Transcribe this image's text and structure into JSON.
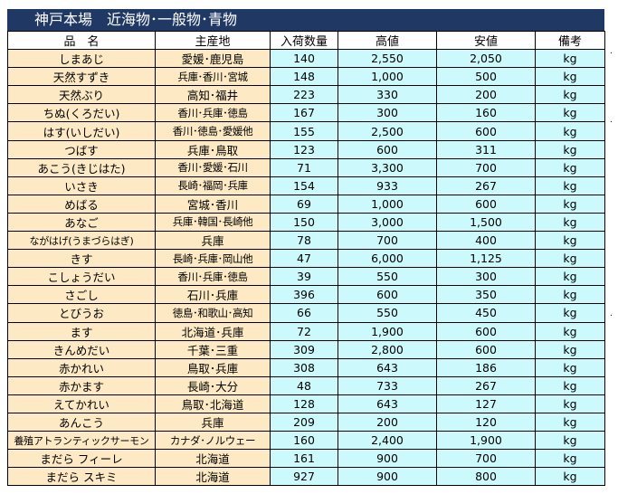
{
  "title": "神戸本場　近海物･一般物･青物",
  "headers": [
    "品　名",
    "主産地",
    "入荷数量",
    "高値",
    "安値",
    "備考"
  ],
  "rows": [
    {
      "name": "しまあじ",
      "origin": "愛媛･鹿児島",
      "qty": "140",
      "high": "2,550",
      "low": "2,050",
      "note": "kg"
    },
    {
      "name": "天然すずき",
      "origin": "兵庫･香川･宮城",
      "qty": "148",
      "high": "1,000",
      "low": "500",
      "note": "kg"
    },
    {
      "name": "天然ぶり",
      "origin": "高知･福井",
      "qty": "223",
      "high": "330",
      "low": "200",
      "note": "kg"
    },
    {
      "name": "ちぬ(くろだい)",
      "origin": "香川･兵庫･徳島",
      "qty": "167",
      "high": "300",
      "low": "160",
      "note": "kg"
    },
    {
      "name": "はす(いしだい)",
      "origin": "香川･徳島･愛媛他",
      "qty": "155",
      "high": "2,500",
      "low": "600",
      "note": "kg"
    },
    {
      "name": "つばす",
      "origin": "兵庫･鳥取",
      "qty": "123",
      "high": "600",
      "low": "311",
      "note": "kg"
    },
    {
      "name": "あこう(きじはた)",
      "origin": "香川･愛媛･石川",
      "qty": "71",
      "high": "3,300",
      "low": "700",
      "note": "kg"
    },
    {
      "name": "いさき",
      "origin": "長崎･福岡･兵庫",
      "qty": "154",
      "high": "933",
      "low": "267",
      "note": "kg"
    },
    {
      "name": "めばる",
      "origin": "宮城･香川",
      "qty": "69",
      "high": "1,000",
      "low": "600",
      "note": "kg"
    },
    {
      "name": "あなご",
      "origin": "兵庫･韓国･長崎他",
      "qty": "150",
      "high": "3,000",
      "low": "1,500",
      "note": "kg"
    },
    {
      "name": "ながはげ(うまづらはぎ)",
      "origin": "兵庫",
      "qty": "78",
      "high": "700",
      "low": "400",
      "note": "kg"
    },
    {
      "name": "きす",
      "origin": "長崎･兵庫･岡山他",
      "qty": "47",
      "high": "6,000",
      "low": "1,125",
      "note": "kg"
    },
    {
      "name": "こしょうだい",
      "origin": "香川･兵庫･徳島",
      "qty": "39",
      "high": "550",
      "low": "300",
      "note": "kg"
    },
    {
      "name": "さごし",
      "origin": "石川･兵庫",
      "qty": "396",
      "high": "600",
      "low": "350",
      "note": "kg"
    },
    {
      "name": "とびうお",
      "origin": "徳島･和歌山･高知",
      "qty": "66",
      "high": "550",
      "low": "450",
      "note": "kg"
    },
    {
      "name": "ます",
      "origin": "北海道･兵庫",
      "qty": "72",
      "high": "1,900",
      "low": "600",
      "note": "kg"
    },
    {
      "name": "きんめだい",
      "origin": "千葉･三重",
      "qty": "309",
      "high": "2,800",
      "low": "600",
      "note": "kg"
    },
    {
      "name": "赤かれい",
      "origin": "鳥取･兵庫",
      "qty": "308",
      "high": "643",
      "low": "186",
      "note": "kg"
    },
    {
      "name": "赤かます",
      "origin": "長崎･大分",
      "qty": "48",
      "high": "733",
      "low": "267",
      "note": "kg"
    },
    {
      "name": "えてかれい",
      "origin": "鳥取･北海道",
      "qty": "128",
      "high": "643",
      "low": "127",
      "note": "kg"
    },
    {
      "name": "あんこう",
      "origin": "兵庫",
      "qty": "209",
      "high": "200",
      "low": "120",
      "note": "kg"
    },
    {
      "name": "養殖アトランティックサーモン",
      "origin": "カナダ･ノルウェー",
      "qty": "160",
      "high": "2,400",
      "low": "1,900",
      "note": "kg"
    },
    {
      "name": "まだら フィーレ",
      "origin": "北海道",
      "qty": "161",
      "high": "900",
      "low": "700",
      "note": "kg"
    },
    {
      "name": "まだら スキミ",
      "origin": "北海道",
      "qty": "927",
      "high": "900",
      "low": "800",
      "note": "kg"
    }
  ],
  "side_marks": [
    ".",
    ".",
    "."
  ]
}
